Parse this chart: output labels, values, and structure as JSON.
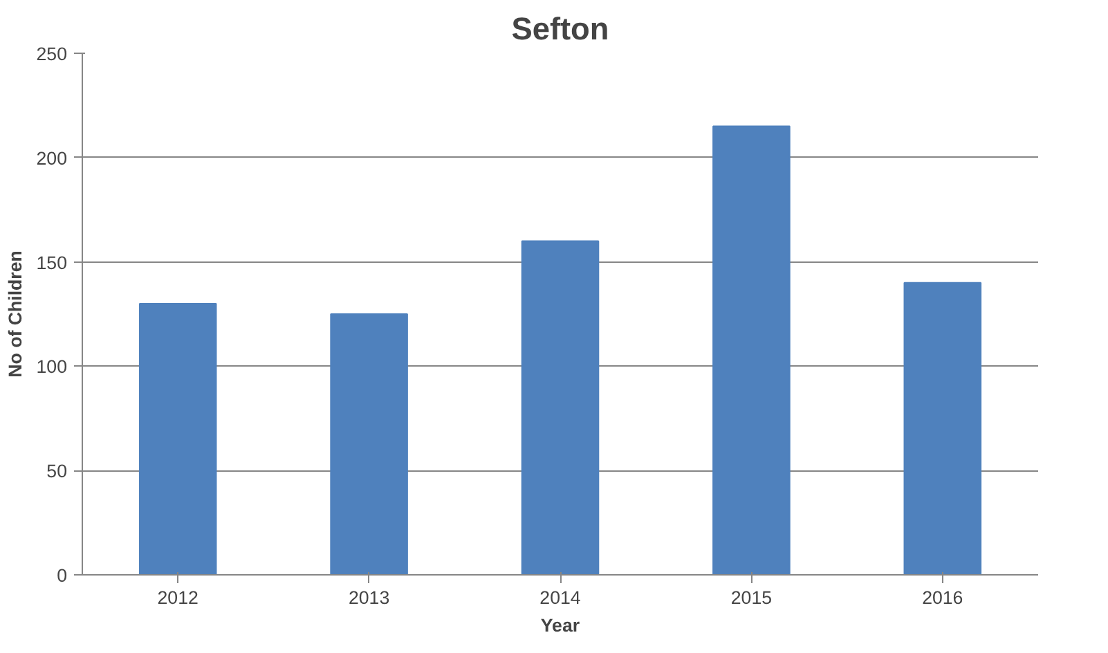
{
  "chart_data": {
    "type": "bar",
    "title": "Sefton",
    "xlabel": "Year",
    "ylabel": "No of Children",
    "categories": [
      "2012",
      "2013",
      "2014",
      "2015",
      "2016"
    ],
    "values": [
      130,
      125,
      160,
      215,
      140
    ],
    "color": "#4f81bd",
    "ylim": [
      0,
      250
    ],
    "yticks": [
      0,
      50,
      100,
      150,
      200,
      250
    ],
    "grid": "y"
  }
}
